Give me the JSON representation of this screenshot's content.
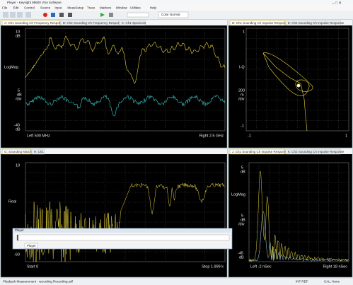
{
  "window": {
    "title": "Player - Keysight 89600 VSA Software"
  },
  "menu": [
    "File",
    "Edit",
    "Control",
    "Source",
    "Input",
    "MeasSetup",
    "Trace",
    "Markers",
    "Window",
    "Utilities",
    "Help"
  ],
  "toolbar": {
    "color_box": "Color Normal"
  },
  "panels": {
    "a": {
      "tabs": [
        "A: Ch1 Sounding Ch Frequency Response",
        "B: Ch2 Sounding Ch Frequency Response",
        "C: Ch1 Spectrum"
      ],
      "top": "10",
      "top_unit": "dB",
      "format": "LogMag",
      "scale": "5",
      "scale_unit": "dB",
      "per_div": "/div",
      "bottom": "-40",
      "bottom_unit": "dB",
      "left": "Left 500 MHz",
      "right": "Right 2.5 GHz"
    },
    "d": {
      "tabs": [
        "D: Ch1 Sounding Ch Impulse Response",
        "E: Ch2 Sounding Ch Impulse Response"
      ],
      "top": "1",
      "format": "I-Q",
      "scale": "200",
      "scale_unit": "m",
      "per_div": "/div",
      "bottom": "-1",
      "left": "-1",
      "right": "1"
    },
    "g": {
      "tabs": [
        "G: Sounding Match",
        "H: Ch1"
      ],
      "top": "10",
      "format": "Real",
      "bottom": "-60",
      "left": "Start 0",
      "right": "Stop 1.999 k"
    },
    "j": {
      "tabs": [
        "J: Ch1 Sounding Ch Impulse Response",
        "K: Ch2 Sounding Ch Impulse Response"
      ],
      "top": "5",
      "top_unit": "dB",
      "format": "LogMag",
      "scale": "5",
      "scale_unit": "dB",
      "per_div": "/div",
      "bottom": "-45",
      "bottom_unit": "dB",
      "left": "Left -2 nSec",
      "right": "Right 18 nSec"
    }
  },
  "player": {
    "title": "Player",
    "tab": "Player"
  },
  "status": {
    "message": "Playback Measurement - recording Recording.sdf",
    "ref": "INT REF",
    "cal": "CAL: None"
  }
}
